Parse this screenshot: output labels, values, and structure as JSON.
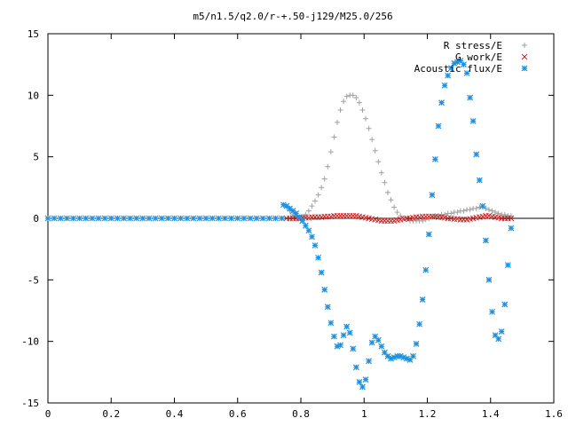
{
  "chart_data": {
    "type": "scatter",
    "title": "m5/n1.5/q2.0/r-+.50-j129/M25.0/256",
    "xlabel": "",
    "ylabel": "",
    "xlim": [
      0,
      1.6
    ],
    "ylim": [
      -15,
      15
    ],
    "xticks": [
      0,
      0.2,
      0.4,
      0.6,
      0.8,
      1,
      1.2,
      1.4,
      1.6
    ],
    "xtick_labels": [
      "0",
      "0.2",
      "0.4",
      "0.6",
      "0.8",
      "1",
      "1.2",
      "1.4",
      "1.6"
    ],
    "yticks": [
      -15,
      -10,
      -5,
      0,
      5,
      10,
      15
    ],
    "ytick_labels": [
      "-15",
      "-10",
      "-5",
      "0",
      "5",
      "10",
      "15"
    ],
    "grid": false,
    "legend_position": "top-right",
    "series": [
      {
        "name": "R stress/E",
        "marker": "+",
        "color": "#a0a0a0",
        "x": [
          0.755,
          0.765,
          0.775,
          0.785,
          0.795,
          0.805,
          0.815,
          0.825,
          0.835,
          0.845,
          0.855,
          0.865,
          0.875,
          0.885,
          0.895,
          0.905,
          0.915,
          0.925,
          0.935,
          0.945,
          0.955,
          0.965,
          0.975,
          0.985,
          0.995,
          1.005,
          1.015,
          1.025,
          1.035,
          1.045,
          1.055,
          1.065,
          1.075,
          1.085,
          1.095,
          1.105,
          1.115,
          1.125,
          1.135,
          1.145,
          1.155,
          1.165,
          1.175,
          1.185,
          1.195,
          1.205,
          1.215,
          1.225,
          1.235,
          1.245,
          1.255,
          1.265,
          1.275,
          1.285,
          1.295,
          1.305,
          1.315,
          1.325,
          1.335,
          1.345,
          1.355,
          1.365,
          1.375,
          1.385,
          1.395,
          1.405,
          1.415,
          1.425,
          1.435,
          1.445,
          1.455,
          1.465
        ],
        "y": [
          0.9,
          0.6,
          0.3,
          0.1,
          0.0,
          0.1,
          0.3,
          0.6,
          1.0,
          1.4,
          1.9,
          2.5,
          3.2,
          4.2,
          5.4,
          6.6,
          7.8,
          8.8,
          9.5,
          9.9,
          10.0,
          10.0,
          9.8,
          9.4,
          8.8,
          8.1,
          7.3,
          6.4,
          5.5,
          4.6,
          3.7,
          2.9,
          2.1,
          1.5,
          0.9,
          0.5,
          0.2,
          0.0,
          -0.1,
          -0.2,
          -0.2,
          -0.2,
          -0.2,
          -0.2,
          -0.1,
          0.0,
          0.1,
          0.2,
          0.2,
          0.3,
          0.3,
          0.4,
          0.4,
          0.5,
          0.5,
          0.6,
          0.6,
          0.7,
          0.7,
          0.8,
          0.8,
          0.9,
          0.9,
          0.8,
          0.7,
          0.6,
          0.5,
          0.4,
          0.3,
          0.3,
          0.2,
          0.2
        ]
      },
      {
        "name": "G work/E",
        "marker": "x",
        "color": "#cc2020",
        "x": [
          0.755,
          0.765,
          0.775,
          0.785,
          0.795,
          0.805,
          0.815,
          0.825,
          0.835,
          0.845,
          0.855,
          0.865,
          0.875,
          0.885,
          0.895,
          0.905,
          0.915,
          0.925,
          0.935,
          0.945,
          0.955,
          0.965,
          0.975,
          0.985,
          0.995,
          1.005,
          1.015,
          1.025,
          1.035,
          1.045,
          1.055,
          1.065,
          1.075,
          1.085,
          1.095,
          1.105,
          1.115,
          1.125,
          1.135,
          1.145,
          1.155,
          1.165,
          1.175,
          1.185,
          1.195,
          1.205,
          1.215,
          1.225,
          1.235,
          1.245,
          1.255,
          1.265,
          1.275,
          1.285,
          1.295,
          1.305,
          1.315,
          1.325,
          1.335,
          1.345,
          1.355,
          1.365,
          1.375,
          1.385,
          1.395,
          1.405,
          1.415,
          1.425,
          1.435,
          1.445,
          1.455,
          1.465
        ],
        "y": [
          0.0,
          0.0,
          0.0,
          0.0,
          0.0,
          0.05,
          0.05,
          0.05,
          0.1,
          0.1,
          0.1,
          0.1,
          0.15,
          0.15,
          0.15,
          0.2,
          0.2,
          0.2,
          0.2,
          0.2,
          0.2,
          0.2,
          0.2,
          0.15,
          0.1,
          0.05,
          0.0,
          -0.05,
          -0.1,
          -0.15,
          -0.2,
          -0.2,
          -0.2,
          -0.2,
          -0.2,
          -0.15,
          -0.1,
          -0.05,
          0.0,
          0.0,
          0.05,
          0.1,
          0.1,
          0.15,
          0.15,
          0.15,
          0.15,
          0.15,
          0.1,
          0.1,
          0.05,
          0.0,
          0.0,
          -0.05,
          -0.05,
          -0.1,
          -0.1,
          -0.1,
          -0.05,
          0.0,
          0.05,
          0.1,
          0.15,
          0.2,
          0.2,
          0.15,
          0.1,
          0.05,
          0.0,
          0.0,
          0.0,
          0.0
        ]
      },
      {
        "name": "Acoustic flux/E",
        "marker": "*",
        "color": "#1e90e0",
        "x": [
          0.0,
          0.02,
          0.04,
          0.06,
          0.08,
          0.1,
          0.12,
          0.14,
          0.16,
          0.18,
          0.2,
          0.22,
          0.24,
          0.26,
          0.28,
          0.3,
          0.32,
          0.34,
          0.36,
          0.38,
          0.4,
          0.42,
          0.44,
          0.46,
          0.48,
          0.5,
          0.52,
          0.54,
          0.56,
          0.58,
          0.6,
          0.62,
          0.64,
          0.66,
          0.68,
          0.7,
          0.72,
          0.74,
          0.745,
          0.755,
          0.765,
          0.775,
          0.785,
          0.795,
          0.805,
          0.815,
          0.825,
          0.835,
          0.845,
          0.855,
          0.865,
          0.875,
          0.885,
          0.895,
          0.905,
          0.915,
          0.925,
          0.935,
          0.945,
          0.955,
          0.965,
          0.975,
          0.985,
          0.995,
          1.005,
          1.015,
          1.025,
          1.035,
          1.045,
          1.055,
          1.065,
          1.075,
          1.085,
          1.095,
          1.105,
          1.115,
          1.125,
          1.135,
          1.145,
          1.155,
          1.165,
          1.175,
          1.185,
          1.195,
          1.205,
          1.215,
          1.225,
          1.235,
          1.245,
          1.255,
          1.265,
          1.275,
          1.285,
          1.295,
          1.305,
          1.315,
          1.325,
          1.335,
          1.345,
          1.355,
          1.365,
          1.375,
          1.385,
          1.395,
          1.405,
          1.415,
          1.425,
          1.435,
          1.445,
          1.455,
          1.465
        ],
        "y": [
          0,
          0,
          0,
          0,
          0,
          0,
          0,
          0,
          0,
          0,
          0,
          0,
          0,
          0,
          0,
          0,
          0,
          0,
          0,
          0,
          0,
          0,
          0,
          0,
          0,
          0,
          0,
          0,
          0,
          0,
          0,
          0,
          0,
          0,
          0,
          0,
          0,
          0,
          1.1,
          1.0,
          0.8,
          0.6,
          0.4,
          0.1,
          -0.2,
          -0.6,
          -1.0,
          -1.5,
          -2.2,
          -3.2,
          -4.4,
          -5.8,
          -7.2,
          -8.5,
          -9.6,
          -10.4,
          -10.3,
          -9.5,
          -8.8,
          -9.3,
          -10.6,
          -12.1,
          -13.3,
          -13.7,
          -13.1,
          -11.6,
          -10.1,
          -9.6,
          -9.9,
          -10.4,
          -10.9,
          -11.2,
          -11.4,
          -11.3,
          -11.2,
          -11.2,
          -11.3,
          -11.4,
          -11.5,
          -11.2,
          -10.2,
          -8.6,
          -6.6,
          -4.2,
          -1.3,
          1.9,
          4.8,
          7.5,
          9.4,
          10.8,
          11.6,
          12.2,
          12.6,
          12.7,
          12.8,
          12.5,
          11.8,
          9.8,
          7.9,
          5.2,
          3.1,
          1.0,
          -1.8,
          -5.0,
          -7.6,
          -9.5,
          -9.8,
          -9.2,
          -7.0,
          -3.8,
          -0.8
        ]
      }
    ]
  }
}
